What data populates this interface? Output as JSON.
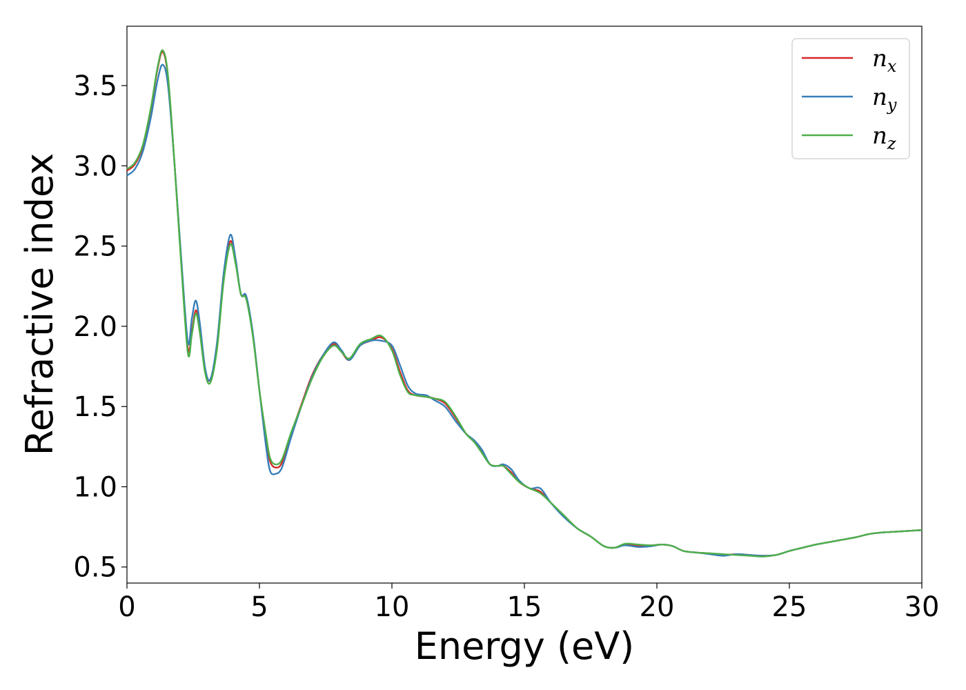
{
  "chart_data": {
    "type": "line",
    "title": "",
    "xlabel": "Energy (eV)",
    "ylabel": "Refractive index",
    "xlim": [
      0,
      30
    ],
    "ylim": [
      0.4,
      3.87
    ],
    "xticks": [
      0,
      5,
      10,
      15,
      20,
      25,
      30
    ],
    "xtick_labels": [
      "0",
      "5",
      "10",
      "15",
      "20",
      "25",
      "30"
    ],
    "yticks": [
      0.5,
      1.0,
      1.5,
      2.0,
      2.5,
      3.0,
      3.5
    ],
    "ytick_labels": [
      "0.5",
      "1.0",
      "1.5",
      "2.0",
      "2.5",
      "3.0",
      "3.5"
    ],
    "grid": false,
    "legend": {
      "placement": "top-right",
      "entries": [
        {
          "base": "n",
          "sub": "x"
        },
        {
          "base": "n",
          "sub": "y"
        },
        {
          "base": "n",
          "sub": "z"
        }
      ]
    },
    "series": [
      {
        "name": "n_x",
        "color": "#d62728",
        "x": [
          0,
          0.3,
          0.6,
          0.9,
          1.15,
          1.35,
          1.55,
          1.8,
          2.05,
          2.3,
          2.45,
          2.6,
          2.75,
          2.95,
          3.15,
          3.4,
          3.65,
          3.9,
          4.1,
          4.3,
          4.5,
          4.75,
          5.0,
          5.25,
          5.4,
          5.6,
          5.85,
          6.2,
          6.6,
          7.0,
          7.4,
          7.8,
          8.1,
          8.4,
          8.8,
          9.2,
          9.6,
          10.0,
          10.3,
          10.6,
          10.9,
          11.3,
          11.6,
          12.0,
          12.4,
          12.8,
          13.1,
          13.4,
          13.7,
          14.0,
          14.2,
          14.5,
          14.8,
          15.2,
          15.6,
          16.0,
          16.5,
          17.0,
          17.5,
          18.0,
          18.4,
          18.8,
          19.3,
          19.8,
          20.2,
          20.6,
          21.0,
          21.5,
          22.0,
          22.5,
          23.0,
          23.5,
          24.0,
          24.5,
          25.0,
          25.5,
          26.0,
          26.5,
          27.0,
          27.5,
          28.0,
          28.5,
          29.0,
          29.5,
          30.0
        ],
        "y": [
          2.97,
          3.01,
          3.12,
          3.35,
          3.6,
          3.71,
          3.55,
          3.0,
          2.4,
          1.86,
          1.97,
          2.1,
          1.98,
          1.72,
          1.67,
          1.88,
          2.3,
          2.53,
          2.4,
          2.2,
          2.18,
          1.95,
          1.6,
          1.3,
          1.16,
          1.12,
          1.15,
          1.33,
          1.52,
          1.7,
          1.82,
          1.89,
          1.84,
          1.79,
          1.88,
          1.91,
          1.93,
          1.86,
          1.72,
          1.6,
          1.57,
          1.56,
          1.55,
          1.52,
          1.43,
          1.33,
          1.28,
          1.22,
          1.14,
          1.13,
          1.13,
          1.09,
          1.03,
          0.99,
          0.97,
          0.9,
          0.82,
          0.74,
          0.69,
          0.63,
          0.62,
          0.64,
          0.63,
          0.635,
          0.64,
          0.63,
          0.6,
          0.59,
          0.585,
          0.575,
          0.58,
          0.575,
          0.57,
          0.575,
          0.6,
          0.62,
          0.64,
          0.655,
          0.67,
          0.685,
          0.705,
          0.715,
          0.72,
          0.725,
          0.73
        ]
      },
      {
        "name": "n_y",
        "color": "#377eb8",
        "x": [
          0,
          0.3,
          0.6,
          0.9,
          1.15,
          1.35,
          1.55,
          1.8,
          2.05,
          2.3,
          2.45,
          2.6,
          2.75,
          2.95,
          3.15,
          3.4,
          3.65,
          3.9,
          4.1,
          4.3,
          4.5,
          4.75,
          5.0,
          5.25,
          5.4,
          5.6,
          5.85,
          6.2,
          6.6,
          7.0,
          7.4,
          7.8,
          8.1,
          8.4,
          8.8,
          9.2,
          9.6,
          10.0,
          10.3,
          10.6,
          10.9,
          11.3,
          11.6,
          12.0,
          12.4,
          12.8,
          13.1,
          13.4,
          13.7,
          14.0,
          14.2,
          14.5,
          14.8,
          15.2,
          15.6,
          16.0,
          16.5,
          17.0,
          17.5,
          18.0,
          18.4,
          18.8,
          19.3,
          19.8,
          20.2,
          20.6,
          21.0,
          21.5,
          22.0,
          22.5,
          23.0,
          23.5,
          24.0,
          24.5,
          25.0,
          25.5,
          26.0,
          26.5,
          27.0,
          27.5,
          28.0,
          28.5,
          29.0,
          29.5,
          30.0
        ],
        "y": [
          2.94,
          2.98,
          3.09,
          3.3,
          3.53,
          3.63,
          3.5,
          3.0,
          2.42,
          1.9,
          2.05,
          2.16,
          2.02,
          1.74,
          1.67,
          1.9,
          2.33,
          2.57,
          2.42,
          2.2,
          2.19,
          1.96,
          1.6,
          1.25,
          1.1,
          1.08,
          1.12,
          1.31,
          1.51,
          1.69,
          1.82,
          1.9,
          1.85,
          1.79,
          1.88,
          1.91,
          1.91,
          1.88,
          1.76,
          1.63,
          1.58,
          1.57,
          1.54,
          1.5,
          1.41,
          1.33,
          1.29,
          1.23,
          1.14,
          1.13,
          1.14,
          1.11,
          1.04,
          0.99,
          0.99,
          0.9,
          0.81,
          0.74,
          0.69,
          0.63,
          0.62,
          0.635,
          0.625,
          0.63,
          0.64,
          0.63,
          0.6,
          0.59,
          0.58,
          0.57,
          0.58,
          0.575,
          0.57,
          0.575,
          0.6,
          0.62,
          0.64,
          0.655,
          0.67,
          0.685,
          0.705,
          0.715,
          0.72,
          0.725,
          0.73
        ]
      },
      {
        "name": "n_z",
        "color": "#4daf4a",
        "x": [
          0,
          0.3,
          0.6,
          0.9,
          1.15,
          1.35,
          1.55,
          1.8,
          2.05,
          2.3,
          2.45,
          2.6,
          2.75,
          2.95,
          3.15,
          3.4,
          3.65,
          3.9,
          4.1,
          4.3,
          4.5,
          4.75,
          5.0,
          5.25,
          5.4,
          5.6,
          5.85,
          6.2,
          6.6,
          7.0,
          7.4,
          7.8,
          8.1,
          8.4,
          8.8,
          9.2,
          9.6,
          10.0,
          10.3,
          10.6,
          10.9,
          11.3,
          11.6,
          12.0,
          12.4,
          12.8,
          13.1,
          13.4,
          13.7,
          14.0,
          14.2,
          14.5,
          14.8,
          15.2,
          15.6,
          16.0,
          16.5,
          17.0,
          17.5,
          18.0,
          18.4,
          18.8,
          19.3,
          19.8,
          20.2,
          20.6,
          21.0,
          21.5,
          22.0,
          22.5,
          23.0,
          23.5,
          24.0,
          24.5,
          25.0,
          25.5,
          26.0,
          26.5,
          27.0,
          27.5,
          28.0,
          28.5,
          29.0,
          29.5,
          30.0
        ],
        "y": [
          2.98,
          3.02,
          3.13,
          3.36,
          3.61,
          3.72,
          3.56,
          3.0,
          2.38,
          1.83,
          1.95,
          2.08,
          1.96,
          1.71,
          1.65,
          1.86,
          2.28,
          2.51,
          2.39,
          2.2,
          2.17,
          1.94,
          1.6,
          1.32,
          1.18,
          1.14,
          1.17,
          1.34,
          1.51,
          1.68,
          1.81,
          1.88,
          1.84,
          1.8,
          1.89,
          1.92,
          1.94,
          1.85,
          1.7,
          1.59,
          1.57,
          1.56,
          1.55,
          1.53,
          1.44,
          1.33,
          1.28,
          1.21,
          1.14,
          1.13,
          1.13,
          1.08,
          1.03,
          0.99,
          0.96,
          0.9,
          0.82,
          0.74,
          0.69,
          0.63,
          0.62,
          0.645,
          0.64,
          0.635,
          0.64,
          0.63,
          0.6,
          0.59,
          0.585,
          0.58,
          0.575,
          0.57,
          0.565,
          0.575,
          0.6,
          0.62,
          0.64,
          0.655,
          0.67,
          0.685,
          0.705,
          0.715,
          0.72,
          0.725,
          0.73
        ]
      }
    ]
  }
}
